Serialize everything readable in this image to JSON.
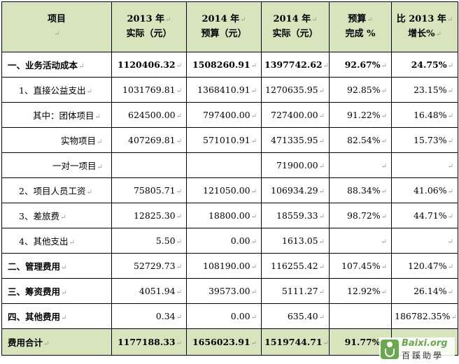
{
  "table": {
    "headers": [
      {
        "line1": "项目",
        "line2": ""
      },
      {
        "line1": "2013 年",
        "line2": "实际（元）"
      },
      {
        "line1": "2014 年",
        "line2": "预算（元）"
      },
      {
        "line1": "2014 年",
        "line2": "实际（元）"
      },
      {
        "line1": "预算",
        "line2": "完成 %"
      },
      {
        "line1": "比 2013 年",
        "line2": "增长%"
      }
    ],
    "rows": [
      {
        "label": "一、业务活动成本",
        "a2013": "1120406.32",
        "b2014": "1508260.91",
        "a2014": "1397742.62",
        "pct": "92.67%",
        "growth": "24.75%"
      },
      {
        "label": "1、直接公益支出",
        "a2013": "1031769.81",
        "b2014": "1368410.91",
        "a2014": "1270635.95",
        "pct": "92.85%",
        "growth": "23.15%"
      },
      {
        "label": "其中：团体项目",
        "a2013": "624500.00",
        "b2014": "797400.00",
        "a2014": "727400.00",
        "pct": "91.22%",
        "growth": "16.48%"
      },
      {
        "label": "实物项目",
        "a2013": "407269.81",
        "b2014": "571010.91",
        "a2014": "471335.95",
        "pct": "82.54%",
        "growth": "15.73%"
      },
      {
        "label": "一对一项目",
        "a2013": "",
        "b2014": "",
        "a2014": "71900.00",
        "pct": "",
        "growth": ""
      },
      {
        "label": "2、项目人员工资",
        "a2013": "75805.71",
        "b2014": "121050.00",
        "a2014": "106934.29",
        "pct": "88.34%",
        "growth": "41.06%"
      },
      {
        "label": "3、差旅费",
        "a2013": "12825.30",
        "b2014": "18800.00",
        "a2014": "18559.33",
        "pct": "98.72%",
        "growth": "44.71%"
      },
      {
        "label": "4、其他支出",
        "a2013": "5.50",
        "b2014": "0.00",
        "a2014": "1613.05",
        "pct": "",
        "growth": ""
      },
      {
        "label": "二、管理费用",
        "a2013": "52729.73",
        "b2014": "108190.00",
        "a2014": "116255.42",
        "pct": "107.45%",
        "growth": "120.47%"
      },
      {
        "label": "三、筹资费用",
        "a2013": "4051.94",
        "b2014": "39573.00",
        "a2014": "5111.27",
        "pct": "12.92%",
        "growth": "26.14%"
      },
      {
        "label": "四、其他费用",
        "a2013": "0.34",
        "b2014": "0.00",
        "a2014": "635.40",
        "pct": "",
        "growth": "186782.35%"
      },
      {
        "label": "费用合计",
        "a2013": "1177188.33",
        "b2014": "1656023.91",
        "a2014": "1519744.71",
        "pct": "91.77%",
        "growth": ""
      }
    ]
  },
  "watermark": {
    "latin": "Baixi.org",
    "chinese": "百蹊助學"
  }
}
